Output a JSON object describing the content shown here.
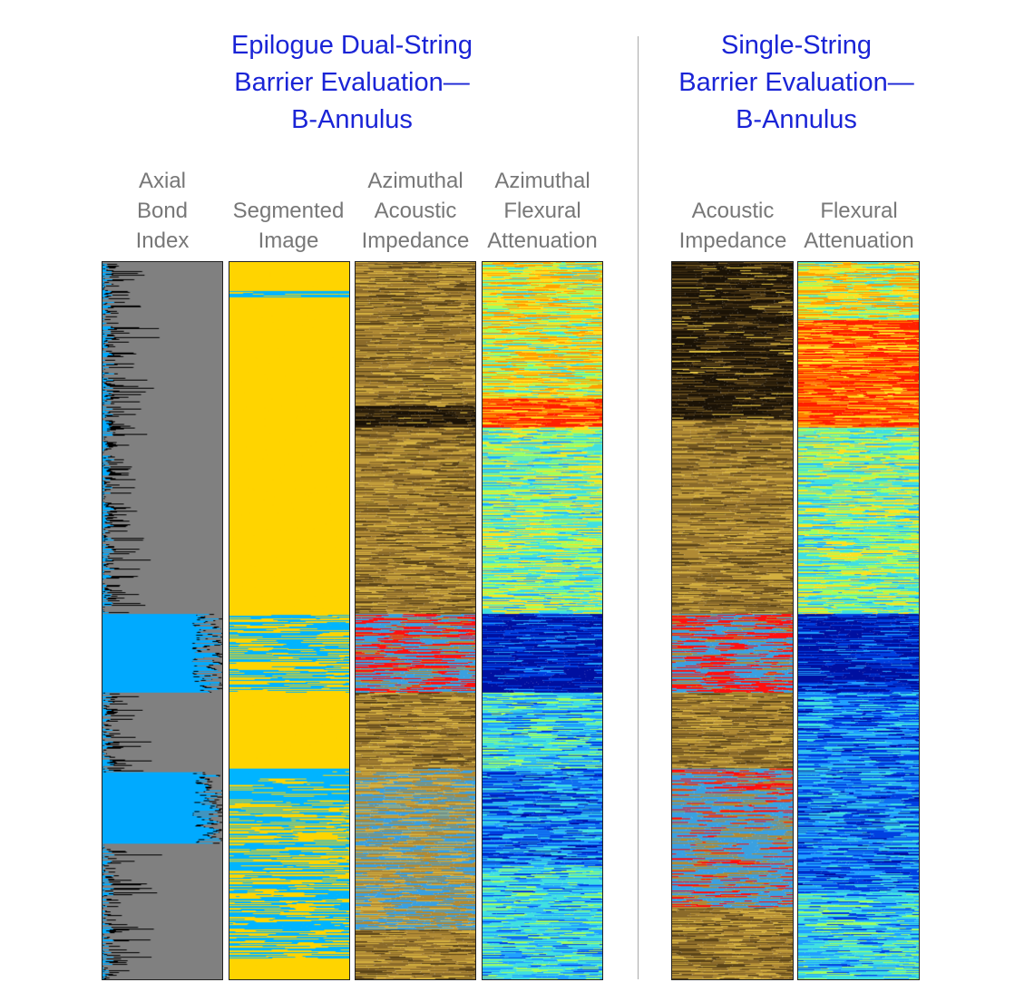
{
  "left_panel": {
    "title_lines": [
      "Epilogue Dual-String",
      "Barrier Evaluation—",
      "B-Annulus"
    ],
    "tracks": [
      {
        "label_lines": [
          "Axial",
          "Bond",
          "Index"
        ],
        "style": "bond-index"
      },
      {
        "label_lines": [
          "Segmented",
          "Image"
        ],
        "style": "segmented"
      },
      {
        "label_lines": [
          "Azimuthal",
          "Acoustic",
          "Impedance"
        ],
        "style": "impedance"
      },
      {
        "label_lines": [
          "Azimuthal",
          "Flexural",
          "Attenuation"
        ],
        "style": "attenuation"
      }
    ]
  },
  "right_panel": {
    "title_lines": [
      "Single-String",
      "Barrier Evaluation—",
      "B-Annulus"
    ],
    "tracks": [
      {
        "label_lines": [
          "Acoustic",
          "Impedance"
        ],
        "style": "impedance-single"
      },
      {
        "label_lines": [
          "Flexural",
          "Attenuation"
        ],
        "style": "attenuation-single"
      }
    ]
  },
  "colors": {
    "title": "#1a24d6",
    "label": "#777777",
    "bond_fill": "#808080",
    "bond_zone": "#00aaff",
    "segment_yellow": "#ffd400",
    "segment_blue": "#00b4ff"
  }
}
